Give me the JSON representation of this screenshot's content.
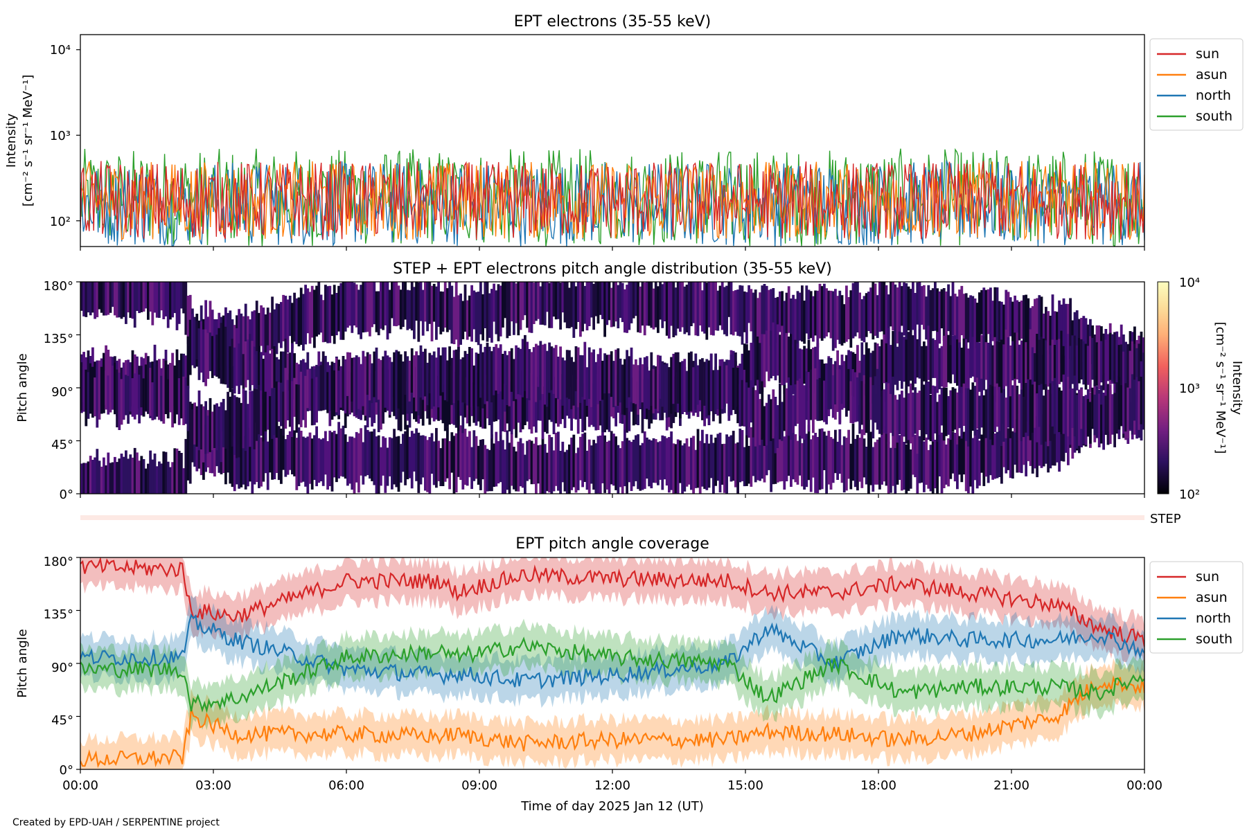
{
  "footer": "Created by EPD-UAH / SERPENTINE project",
  "colors": {
    "sun": "#d62728",
    "asun": "#ff7f0e",
    "north": "#1f77b4",
    "south": "#2ca02c"
  },
  "chart_data": [
    {
      "type": "line",
      "title": "EPT electrons (35-55 keV)",
      "ylabel_line1": "Intensity",
      "ylabel_line2": "[cm⁻² s⁻¹ sr⁻¹ MeV⁻¹]",
      "yscale": "log",
      "ylim": [
        50,
        15000
      ],
      "ytick_labels": [
        "10²",
        "10³",
        "10⁴"
      ],
      "ytick_values": [
        100,
        1000,
        10000
      ],
      "legend": [
        "sun",
        "asun",
        "north",
        "south"
      ],
      "legend_position": "upper right, outside",
      "xlim": [
        "00:00",
        "24:00"
      ],
      "series_summary": [
        {
          "name": "sun",
          "typical_range": [
            60,
            500
          ]
        },
        {
          "name": "asun",
          "typical_range": [
            60,
            500
          ]
        },
        {
          "name": "north",
          "typical_range": [
            50,
            500
          ]
        },
        {
          "name": "south",
          "typical_range": [
            50,
            700
          ]
        }
      ]
    },
    {
      "type": "heatmap",
      "title": "STEP + EPT electrons pitch angle distribution (35-55 keV)",
      "ylabel": "Pitch angle",
      "ytick_labels": [
        "0°",
        "45°",
        "90°",
        "135°",
        "180°"
      ],
      "ylim": [
        0,
        180
      ],
      "colorbar_label_line1": "Intensity",
      "colorbar_label_line2": "[cm⁻² s⁻¹ sr⁻¹ MeV⁻¹]",
      "colorbar_range": [
        100,
        10000
      ],
      "colorbar_scale": "log",
      "colorbar_tick_labels": [
        "10²",
        "10³",
        "10⁴"
      ],
      "step_label": "STEP"
    },
    {
      "type": "line",
      "title": "EPT pitch angle coverage",
      "ylabel": "Pitch angle",
      "ytick_labels": [
        "0°",
        "45°",
        "90°",
        "135°",
        "180°"
      ],
      "ylim": [
        0,
        180
      ],
      "xlabel": "Time of day 2025 Jan 12 (UT)",
      "xtick_labels": [
        "00:00",
        "03:00",
        "06:00",
        "09:00",
        "12:00",
        "15:00",
        "18:00",
        "21:00",
        "00:00"
      ],
      "legend": [
        "sun",
        "asun",
        "north",
        "south"
      ],
      "legend_position": "upper right, outside",
      "series": [
        {
          "name": "sun",
          "x": [
            0,
            2.3,
            2.5,
            3.5,
            6.0,
            8.2,
            8.4,
            10.0,
            12.0,
            14.6,
            15.5,
            17.0,
            18.5,
            20.0,
            22.0,
            23.0,
            24.0
          ],
          "y": [
            172,
            170,
            135,
            130,
            160,
            160,
            150,
            165,
            162,
            160,
            150,
            150,
            158,
            150,
            140,
            120,
            110
          ]
        },
        {
          "name": "asun",
          "x": [
            0,
            2.3,
            2.5,
            3.5,
            6.0,
            8.2,
            8.4,
            10.0,
            12.0,
            14.6,
            15.5,
            17.0,
            18.5,
            20.0,
            22.0,
            23.0,
            24.0
          ],
          "y": [
            8,
            10,
            45,
            30,
            30,
            28,
            30,
            22,
            25,
            25,
            32,
            30,
            25,
            30,
            45,
            75,
            70
          ]
        },
        {
          "name": "north",
          "x": [
            0,
            2.3,
            2.5,
            3.5,
            6.0,
            8.2,
            8.4,
            10.0,
            12.0,
            14.6,
            15.5,
            17.0,
            18.5,
            20.0,
            22.0,
            23.0,
            24.0
          ],
          "y": [
            95,
            95,
            125,
            110,
            85,
            80,
            82,
            75,
            80,
            90,
            120,
            90,
            115,
            110,
            110,
            115,
            100
          ]
        },
        {
          "name": "south",
          "x": [
            0,
            2.3,
            2.5,
            3.5,
            6.0,
            8.2,
            8.4,
            10.0,
            12.0,
            14.6,
            15.5,
            17.0,
            18.5,
            20.0,
            22.0,
            23.0,
            24.0
          ],
          "y": [
            85,
            85,
            55,
            60,
            95,
            100,
            95,
            105,
            95,
            90,
            60,
            90,
            65,
            70,
            70,
            65,
            80
          ]
        }
      ]
    }
  ]
}
